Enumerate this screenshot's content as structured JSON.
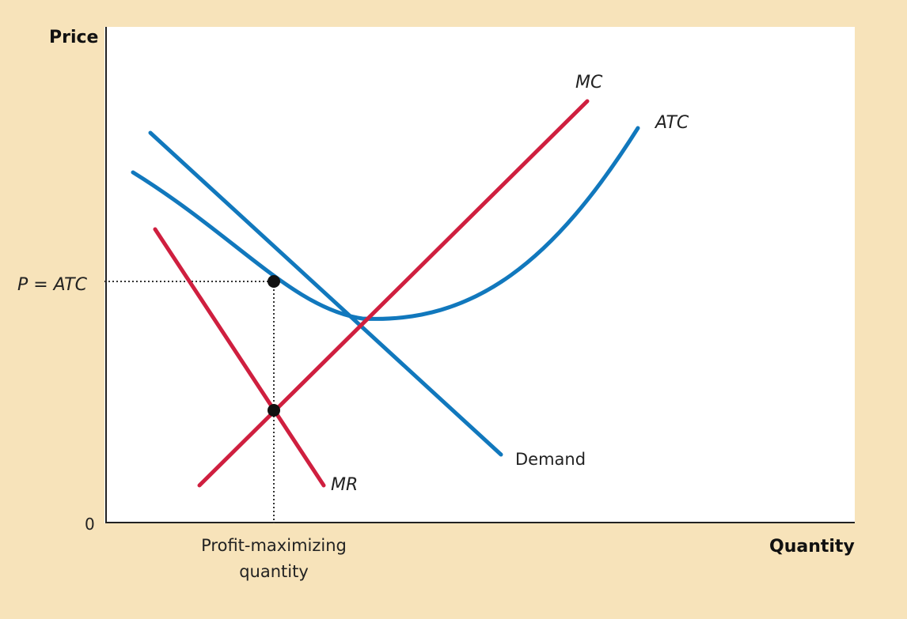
{
  "axes": {
    "y_title": "Price",
    "x_title": "Quantity",
    "origin": "0",
    "y_tick": "P = ATC",
    "x_tick_lines": [
      "Profit-maximizing",
      "quantity"
    ]
  },
  "curves": {
    "mc": "MC",
    "atc": "ATC",
    "demand": "Demand",
    "mr": "MR"
  },
  "colors": {
    "background": "#f7e3ba",
    "plot_area": "#ffffff",
    "demand_atc": "#1178bd",
    "mc_mr": "#cf1f3f"
  }
}
